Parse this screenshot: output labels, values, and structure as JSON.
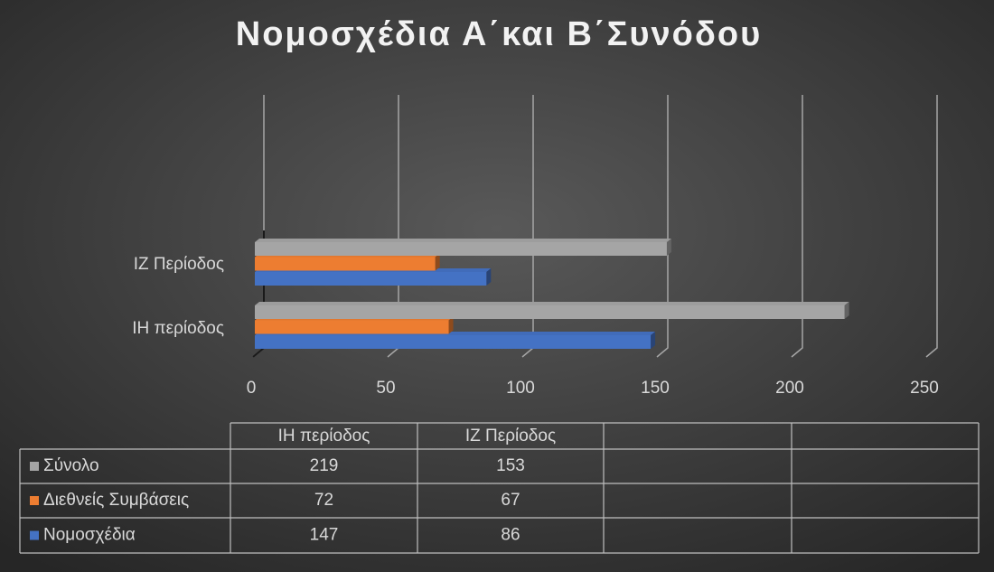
{
  "chart_data": {
    "type": "bar3d_horizontal",
    "title": "Νομοσχέδια Α΄και Β΄Συνόδου",
    "categories": [
      "ΙΗ περίοδος",
      "ΙΖ Περίοδος"
    ],
    "series": [
      {
        "name": "Νομοσχέδια",
        "color": "#4472c4",
        "values": [
          147,
          86
        ]
      },
      {
        "name": "Διεθνείς Συμβάσεις",
        "color": "#ed7d31",
        "values": [
          72,
          67
        ]
      },
      {
        "name": "Σύνολο",
        "color": "#a5a5a5",
        "values": [
          219,
          153
        ]
      }
    ],
    "xlim": [
      0,
      250
    ],
    "xticks": [
      0,
      50,
      100,
      150,
      200,
      250
    ],
    "grid": true,
    "data_table": true
  }
}
